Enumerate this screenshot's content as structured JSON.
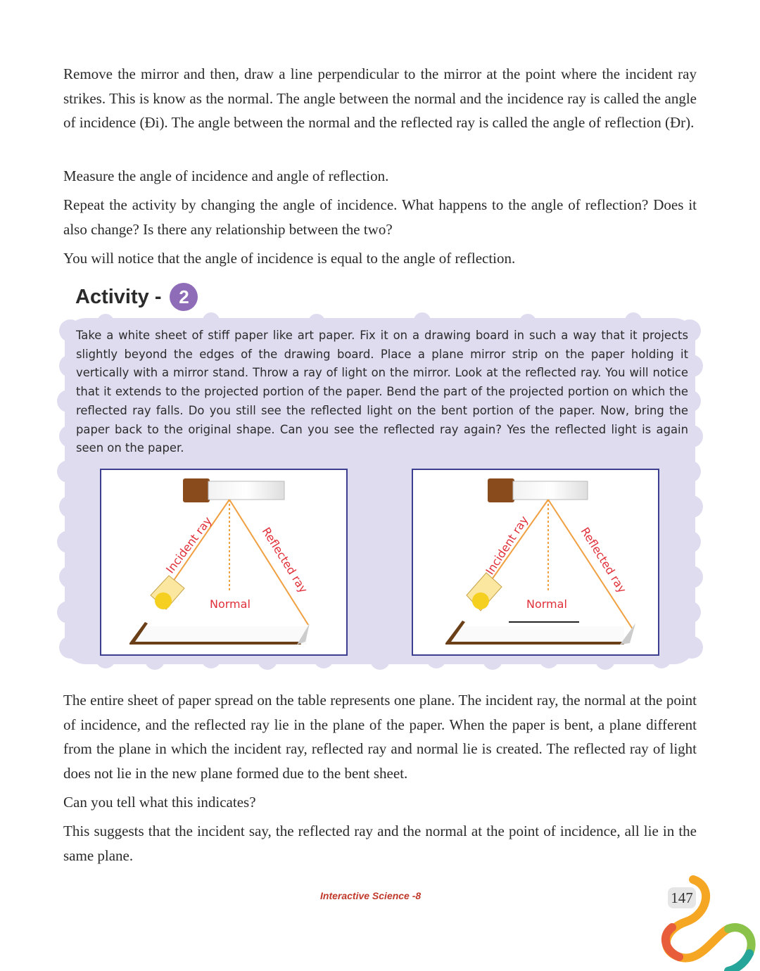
{
  "paragraphs_top": [
    "Remove the mirror and then, draw a line perpendicular to the mirror at the point where the incident ray strikes. This is know as the normal. The angle between the normal and the incidence ray is called the angle of incidence (Ði). The angle between the normal and the reflected ray is called the angle of reflection (Ðr).",
    "Measure the angle of incidence and angle of reflection.",
    "Repeat the activity by changing the angle of incidence. What happens to the angle of reflection? Does it also change? Is there any relationship between the two?",
    "You will notice that the angle of incidence is equal to the angle of reflection."
  ],
  "activity": {
    "title": "Activity -",
    "number": "2",
    "text": "Take a white sheet of  stiff paper like art paper. Fix it on a drawing board in such a way that it projects slightly beyond the edges of the drawing board. Place a plane mirror strip on the paper holding it vertically with a mirror stand. Throw a ray of light on the mirror. Look at the reflected ray. You will notice that it extends to the projected portion of the paper. Bend the part of the projected portion on which the reflected ray falls. Do you still see the reflected light on the bent portion of the paper. Now, bring the paper back to the original shape. Can you see the reflected ray again? Yes the reflected light is again seen on the paper."
  },
  "figures": [
    {
      "incident_label": "Incident ray",
      "reflected_label": "Reflected ray",
      "normal_label": "Normal"
    },
    {
      "incident_label": "Incident ray",
      "reflected_label": "Reflected ray",
      "normal_label": "Normal"
    }
  ],
  "paragraphs_bottom": [
    "The entire sheet of paper spread on the table represents one plane. The incident ray, the normal at the point of incidence, and the reflected ray lie in the plane of the paper. When the paper is bent, a plane different from the plane in which the incident ray, reflected ray and normal lie is created. The reflected ray of light does not lie in the new plane formed due to the bent sheet.",
    "Can you tell what this indicates?",
    "This suggests that the incident say, the reflected ray and the normal at the point of incidence, all lie in the same plane."
  ],
  "footer": {
    "brand": "Interactive Science -8",
    "page_number": "147"
  },
  "colors": {
    "ray_orange": "#f0a040",
    "label_red": "#e0303a",
    "box_lavender": "#e0dcf0",
    "badge_purple": "#8f6cb8",
    "figure_border": "#3c3f8f"
  }
}
